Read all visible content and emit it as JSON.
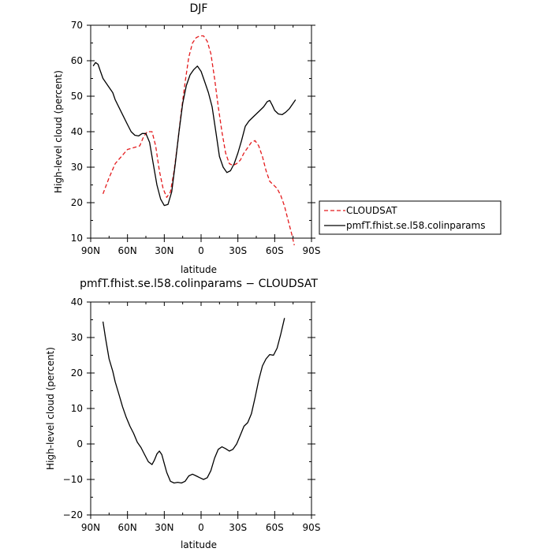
{
  "chart_data": [
    {
      "type": "line",
      "title": "DJF",
      "xlabel": "latitude",
      "ylabel": "High-level cloud (percent)",
      "xlim": [
        90,
        -90
      ],
      "ylim": [
        10,
        70
      ],
      "x_ticks": [
        90,
        60,
        30,
        0,
        -30,
        -60,
        -90
      ],
      "x_tick_labels": [
        "90N",
        "60N",
        "30N",
        "0",
        "30S",
        "60S",
        "90S"
      ],
      "y_ticks": [
        10,
        20,
        30,
        40,
        50,
        60,
        70
      ],
      "y_tick_labels": [
        "10",
        "20",
        "30",
        "40",
        "50",
        "60",
        "70"
      ],
      "legend_position": "right",
      "series": [
        {
          "name": "CLOUDSAT",
          "color": "#e41a1c",
          "dash": "dashed",
          "points": [
            [
              80,
              22.5
            ],
            [
              75,
              27
            ],
            [
              70,
              31
            ],
            [
              65,
              33
            ],
            [
              60,
              35
            ],
            [
              55,
              35.5
            ],
            [
              50,
              36
            ],
            [
              47,
              38.5
            ],
            [
              44,
              40
            ],
            [
              40,
              40
            ],
            [
              37,
              36
            ],
            [
              34,
              29
            ],
            [
              31,
              24
            ],
            [
              28,
              21.5
            ],
            [
              25,
              23
            ],
            [
              22,
              29
            ],
            [
              19,
              37
            ],
            [
              16,
              46
            ],
            [
              13,
              54
            ],
            [
              10,
              61
            ],
            [
              7,
              65
            ],
            [
              4,
              66.5
            ],
            [
              1,
              67
            ],
            [
              -2,
              67
            ],
            [
              -5,
              65.5
            ],
            [
              -8,
              62
            ],
            [
              -11,
              55
            ],
            [
              -14,
              47
            ],
            [
              -17,
              40
            ],
            [
              -20,
              34
            ],
            [
              -23,
              31
            ],
            [
              -26,
              30.5
            ],
            [
              -29,
              31
            ],
            [
              -32,
              32
            ],
            [
              -35,
              34
            ],
            [
              -38,
              35.5
            ],
            [
              -41,
              37
            ],
            [
              -44,
              37.5
            ],
            [
              -47,
              36
            ],
            [
              -50,
              33
            ],
            [
              -53,
              29
            ],
            [
              -56,
              26
            ],
            [
              -59,
              25
            ],
            [
              -62,
              24
            ],
            [
              -65,
              22
            ],
            [
              -68,
              19
            ],
            [
              -71,
              15
            ],
            [
              -74,
              11
            ],
            [
              -76,
              8
            ]
          ]
        },
        {
          "name": "pmfT.fhist.se.l58.colinparams",
          "color": "#000000",
          "dash": "solid",
          "points": [
            [
              88,
              58.5
            ],
            [
              86,
              59.5
            ],
            [
              84,
              59
            ],
            [
              82,
              57
            ],
            [
              80,
              55
            ],
            [
              75,
              52.5
            ],
            [
              72,
              51
            ],
            [
              70,
              49
            ],
            [
              65,
              45.5
            ],
            [
              60,
              42
            ],
            [
              57,
              40
            ],
            [
              54,
              39
            ],
            [
              51,
              38.8
            ],
            [
              48,
              39.5
            ],
            [
              45,
              39.5
            ],
            [
              42,
              37
            ],
            [
              39,
              31
            ],
            [
              36,
              25
            ],
            [
              33,
              21
            ],
            [
              30,
              19.2
            ],
            [
              27,
              19.5
            ],
            [
              24,
              23
            ],
            [
              21,
              31
            ],
            [
              18,
              40
            ],
            [
              15,
              48
            ],
            [
              12,
              53
            ],
            [
              9,
              56
            ],
            [
              6,
              57.5
            ],
            [
              3,
              58.5
            ],
            [
              0,
              57
            ],
            [
              -3,
              54
            ],
            [
              -6,
              51
            ],
            [
              -9,
              47
            ],
            [
              -12,
              40
            ],
            [
              -15,
              33
            ],
            [
              -18,
              30
            ],
            [
              -21,
              28.5
            ],
            [
              -24,
              29
            ],
            [
              -27,
              31
            ],
            [
              -30,
              34
            ],
            [
              -33,
              37.5
            ],
            [
              -36,
              41.5
            ],
            [
              -39,
              43
            ],
            [
              -42,
              44
            ],
            [
              -45,
              45
            ],
            [
              -48,
              46
            ],
            [
              -51,
              47
            ],
            [
              -54,
              48.5
            ],
            [
              -56,
              48.8
            ],
            [
              -58,
              47.5
            ],
            [
              -60,
              46
            ],
            [
              -63,
              45
            ],
            [
              -66,
              44.8
            ],
            [
              -69,
              45.5
            ],
            [
              -72,
              46.5
            ],
            [
              -75,
              48
            ],
            [
              -77,
              49
            ]
          ]
        }
      ]
    },
    {
      "type": "line",
      "title": "pmfT.fhist.se.l58.colinparams − CLOUDSAT",
      "xlabel": "latitude",
      "ylabel": "High-level cloud (percent)",
      "xlim": [
        90,
        -90
      ],
      "ylim": [
        -20,
        40
      ],
      "x_ticks": [
        90,
        60,
        30,
        0,
        -30,
        -60,
        -90
      ],
      "x_tick_labels": [
        "90N",
        "60N",
        "30N",
        "0",
        "30S",
        "60S",
        "90S"
      ],
      "y_ticks": [
        -20,
        -10,
        0,
        10,
        20,
        30,
        40
      ],
      "y_tick_labels": [
        "−20",
        "−10",
        "0",
        "10",
        "20",
        "30",
        "40"
      ],
      "series": [
        {
          "color": "#000000",
          "dash": "solid",
          "points": [
            [
              80,
              34.5
            ],
            [
              78,
              30
            ],
            [
              75,
              24
            ],
            [
              72,
              20.5
            ],
            [
              70,
              17.5
            ],
            [
              67,
              14
            ],
            [
              64,
              10.5
            ],
            [
              61,
              7.5
            ],
            [
              58,
              5
            ],
            [
              55,
              3
            ],
            [
              52,
              0.5
            ],
            [
              49,
              -1
            ],
            [
              46,
              -3
            ],
            [
              43,
              -5
            ],
            [
              40,
              -5.8
            ],
            [
              38,
              -4.5
            ],
            [
              36,
              -2.8
            ],
            [
              34,
              -2
            ],
            [
              32,
              -3
            ],
            [
              30,
              -5.5
            ],
            [
              28,
              -8
            ],
            [
              25,
              -10.5
            ],
            [
              22,
              -11
            ],
            [
              19,
              -10.8
            ],
            [
              16,
              -11
            ],
            [
              13,
              -10.5
            ],
            [
              10,
              -9
            ],
            [
              7,
              -8.5
            ],
            [
              4,
              -9
            ],
            [
              1,
              -9.5
            ],
            [
              -2,
              -10
            ],
            [
              -5,
              -9.5
            ],
            [
              -8,
              -7.5
            ],
            [
              -11,
              -4
            ],
            [
              -14,
              -1.5
            ],
            [
              -17,
              -0.8
            ],
            [
              -20,
              -1.3
            ],
            [
              -23,
              -2
            ],
            [
              -26,
              -1.5
            ],
            [
              -29,
              0
            ],
            [
              -32,
              2.5
            ],
            [
              -35,
              5
            ],
            [
              -38,
              6
            ],
            [
              -41,
              8.5
            ],
            [
              -44,
              13
            ],
            [
              -47,
              18
            ],
            [
              -50,
              22
            ],
            [
              -53,
              24
            ],
            [
              -56,
              25.2
            ],
            [
              -59,
              25
            ],
            [
              -62,
              27
            ],
            [
              -65,
              31
            ],
            [
              -68,
              35.5
            ]
          ]
        }
      ]
    }
  ]
}
